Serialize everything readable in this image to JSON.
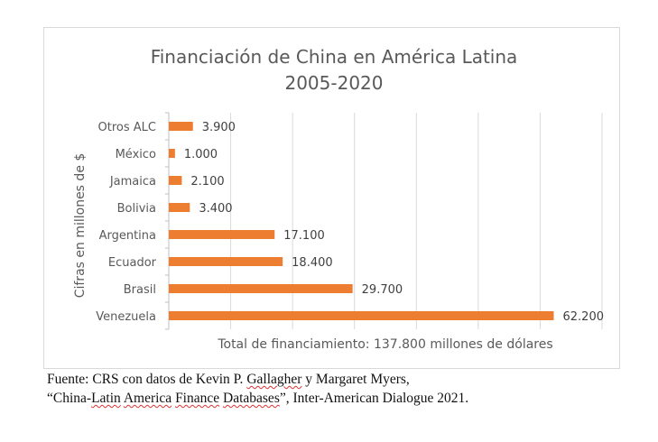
{
  "chart_data": {
    "type": "bar",
    "orientation": "horizontal",
    "title": "Financiación de China en América Latina",
    "subtitle": "2005-2020",
    "categories": [
      "Otros ALC",
      "México",
      "Jamaica",
      "Bolivia",
      "Argentina",
      "Ecuador",
      "Brasil",
      "Venezuela"
    ],
    "values": [
      3900,
      1000,
      2100,
      3400,
      17100,
      18400,
      29700,
      62200
    ],
    "data_labels": [
      "3.900",
      "1.000",
      "2.100",
      "3.400",
      "17.100",
      "18.400",
      "29.700",
      "62.200"
    ],
    "ylabel": "Cifras en millones de $",
    "xlabel": "Total de financiamiento: 137.800 millones de dólares",
    "xlim": [
      0,
      70000
    ],
    "grid": true,
    "bar_color": "#ED7D31"
  },
  "source": {
    "line1_a": "Fuente: CRS con datos de Kevin P. ",
    "line1_b": "Gallagher",
    "line1_c": " y Margaret Myers,",
    "line2_a": "“China-",
    "line2_b": "Latin",
    "line2_c": " ",
    "line2_d": "America",
    "line2_e": " ",
    "line2_f": "Finance",
    "line2_g": " ",
    "line2_h": "Databases",
    "line2_i": "”, Inter-American Dialogue 2021."
  }
}
